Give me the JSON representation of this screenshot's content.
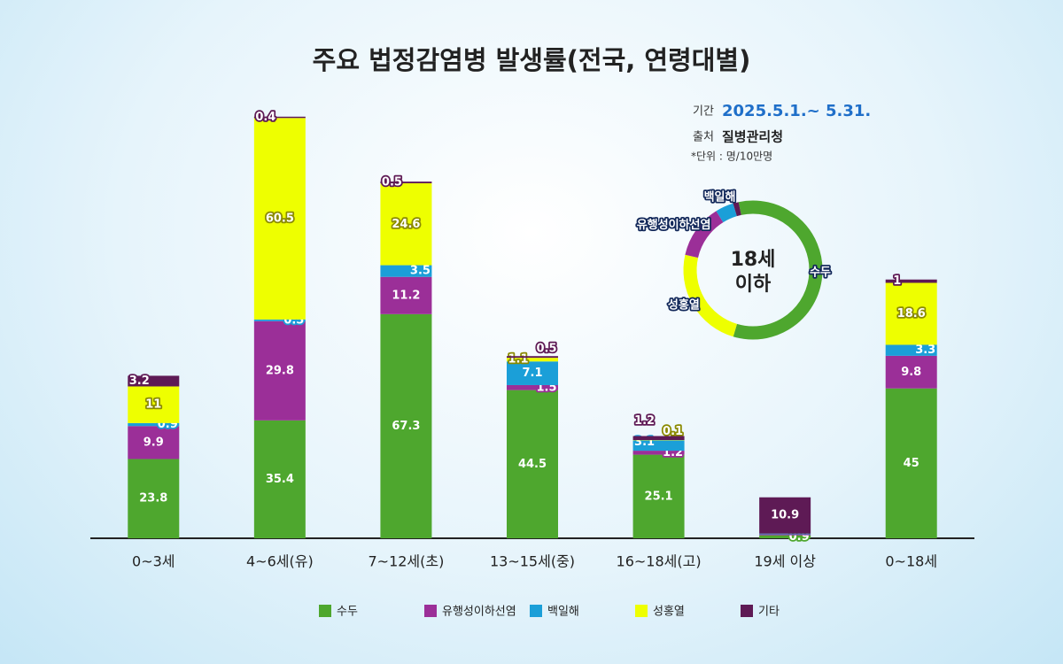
{
  "chart_data": {
    "type": "bar",
    "stacked": true,
    "title": "주요 법정감염병 발생률(전국, 연령대별)",
    "categories": [
      "0~3세",
      "4~6세(유)",
      "7~12세(초)",
      "13~15세(중)",
      "16~18세(고)",
      "19세 이상",
      "0~18세"
    ],
    "series": [
      {
        "name": "수두",
        "color": "#4ea72e",
        "values": [
          23.8,
          35.4,
          67.3,
          44.5,
          25.1,
          0.9,
          45.0
        ]
      },
      {
        "name": "유행성이하선염",
        "color": "#9b2f98",
        "values": [
          9.9,
          29.8,
          11.2,
          1.5,
          1.2,
          0.3,
          9.8
        ]
      },
      {
        "name": "백일해",
        "color": "#1b9fd8",
        "values": [
          0.9,
          0.5,
          3.5,
          7.1,
          3.1,
          0.2,
          3.3
        ]
      },
      {
        "name": "성홍열",
        "color": "#eeff00",
        "values": [
          11.0,
          60.5,
          24.6,
          1.1,
          0.1,
          null,
          18.6
        ]
      },
      {
        "name": "기타",
        "color": "#5e1a55",
        "values": [
          3.2,
          0.4,
          0.5,
          0.5,
          1.2,
          10.9,
          1.0
        ]
      }
    ],
    "ylim": [
      0,
      130
    ],
    "info": {
      "period_label": "기간",
      "period": "2025.5.1.~ 5.31.",
      "source_label": "출처",
      "source": "질병관리청",
      "unit": "*단위 : 명/10만명"
    },
    "donut": {
      "category_index": 6,
      "center": [
        "18세",
        "이하"
      ]
    }
  }
}
